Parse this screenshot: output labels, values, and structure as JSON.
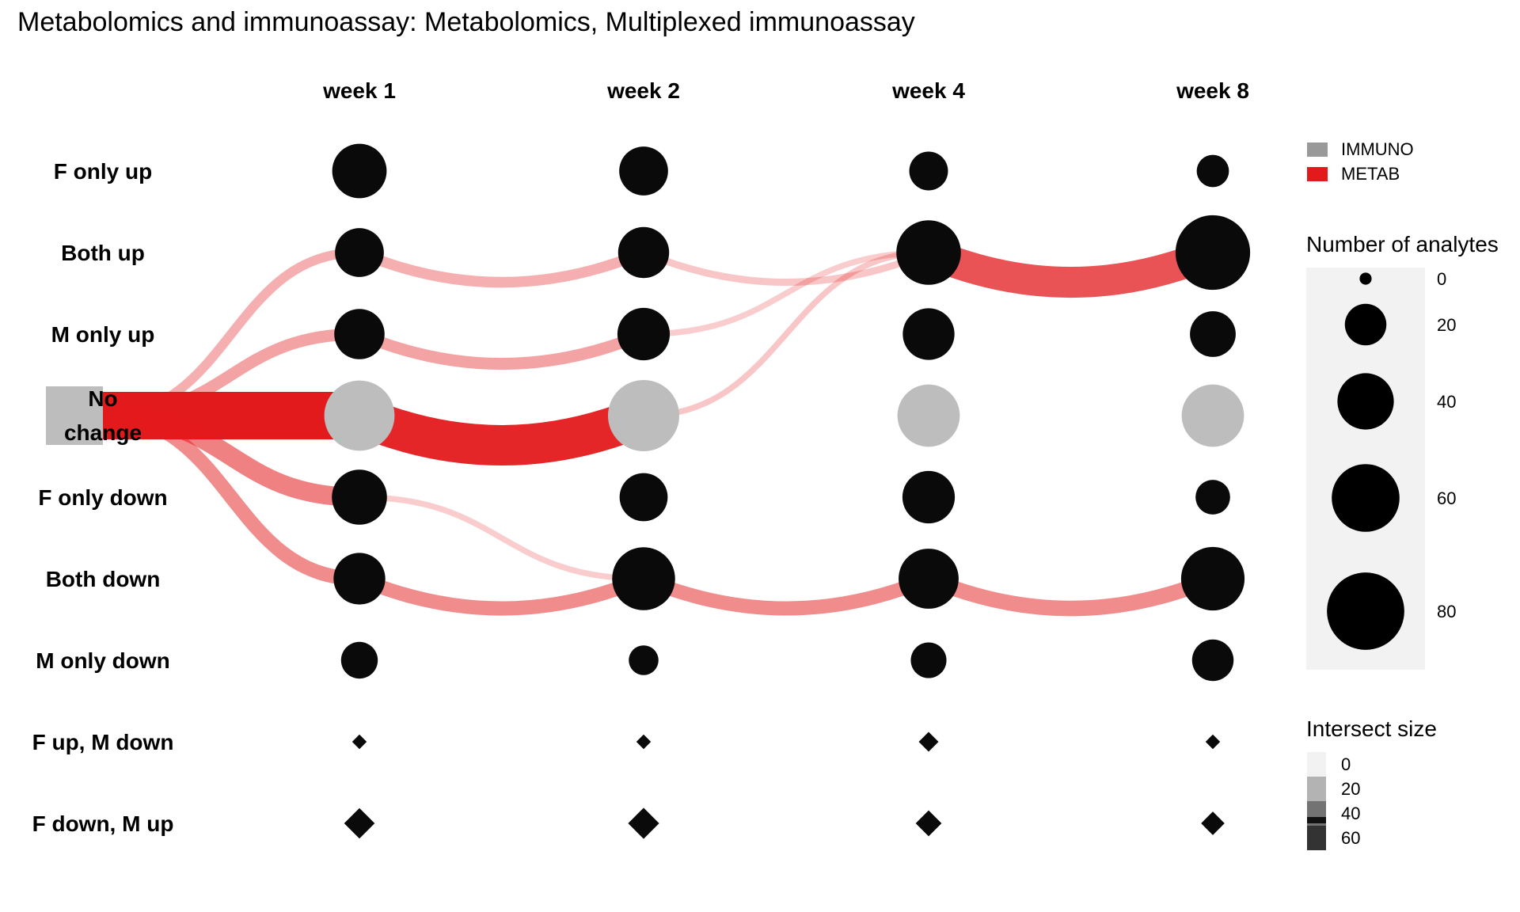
{
  "chart_data": {
    "type": "alluvial-bubble",
    "title": "Metabolomics and immunoassay: Metabolomics, Multiplexed immunoassay",
    "timepoints": [
      "week 1",
      "week 2",
      "week 4",
      "week 8"
    ],
    "categories": [
      "F only up",
      "Both up",
      "M only up",
      "No change",
      "F only down",
      "Both down",
      "M only down",
      "F up, M down",
      "F down, M up"
    ],
    "start_node": {
      "label": "No change",
      "color": "#bdbdbd"
    },
    "node_colors": {
      "changed": "#0a0a0a",
      "no_change": "#bdbdbd"
    },
    "analyte_counts": [
      {
        "category": "F only up",
        "values": [
          37,
          29,
          17,
          11
        ]
      },
      {
        "category": "Both up",
        "values": [
          29,
          32,
          54,
          74
        ]
      },
      {
        "category": "M only up",
        "values": [
          31,
          34,
          33,
          25
        ]
      },
      {
        "category": "No change",
        "values": [
          65,
          67,
          50,
          50
        ]
      },
      {
        "category": "F only down",
        "values": [
          38,
          28,
          34,
          13
        ]
      },
      {
        "category": "Both down",
        "values": [
          33,
          51,
          46,
          52
        ]
      },
      {
        "category": "M only down",
        "values": [
          15,
          9,
          14,
          20
        ]
      }
    ],
    "intersect_counts": [
      {
        "category": "F up, M down",
        "values": [
          3,
          3,
          8,
          3
        ]
      },
      {
        "category": "F down, M up",
        "values": [
          26,
          27,
          17,
          13
        ]
      }
    ],
    "flows": [
      {
        "from_step": 0,
        "from": "No change",
        "to": "Both up",
        "value": 8,
        "opacity": 0.35
      },
      {
        "from_step": 0,
        "from": "No change",
        "to": "M only up",
        "value": 10,
        "opacity": 0.4
      },
      {
        "from_step": 0,
        "from": "No change",
        "to": "No change",
        "value": 40,
        "opacity": 1.0
      },
      {
        "from_step": 0,
        "from": "No change",
        "to": "F only down",
        "value": 16,
        "opacity": 0.55
      },
      {
        "from_step": 0,
        "from": "No change",
        "to": "Both down",
        "value": 12,
        "opacity": 0.5
      },
      {
        "from_step": 1,
        "from": "Both up",
        "to": "Both up",
        "value": 9,
        "opacity": 0.35
      },
      {
        "from_step": 1,
        "from": "M only up",
        "to": "M only up",
        "value": 10,
        "opacity": 0.4
      },
      {
        "from_step": 1,
        "from": "No change",
        "to": "No change",
        "value": 34,
        "opacity": 0.95
      },
      {
        "from_step": 1,
        "from": "F only down",
        "to": "Both down",
        "value": 5,
        "opacity": 0.22
      },
      {
        "from_step": 1,
        "from": "Both down",
        "to": "Both down",
        "value": 12,
        "opacity": 0.5
      },
      {
        "from_step": 2,
        "from": "Both up",
        "to": "Both up",
        "value": 6,
        "opacity": 0.25
      },
      {
        "from_step": 2,
        "from": "M only up",
        "to": "Both up",
        "value": 5,
        "opacity": 0.22
      },
      {
        "from_step": 2,
        "from": "No change",
        "to": "Both up",
        "value": 5,
        "opacity": 0.25
      },
      {
        "from_step": 2,
        "from": "Both down",
        "to": "Both down",
        "value": 12,
        "opacity": 0.5
      },
      {
        "from_step": 3,
        "from": "Both up",
        "to": "Both up",
        "value": 26,
        "opacity": 0.75
      },
      {
        "from_step": 3,
        "from": "Both down",
        "to": "Both down",
        "value": 13,
        "opacity": 0.5
      }
    ],
    "flow_color": "#e31a1c",
    "legend_type": {
      "entries": [
        {
          "name": "IMMUNO",
          "color": "#999999"
        },
        {
          "name": "METAB",
          "color": "#e31a1c"
        }
      ],
      "placement": "top-right"
    },
    "legend_size": {
      "title": "Number of analytes",
      "breaks": [
        0,
        20,
        40,
        60,
        80
      ],
      "placement": "right"
    },
    "legend_intersect": {
      "title": "Intersect size",
      "breaks": [
        0,
        20,
        40,
        60
      ],
      "colors": [
        "#f2f2f2",
        "#b3b3b3",
        "#737373",
        "#333333"
      ],
      "placement": "bottom-right"
    }
  }
}
